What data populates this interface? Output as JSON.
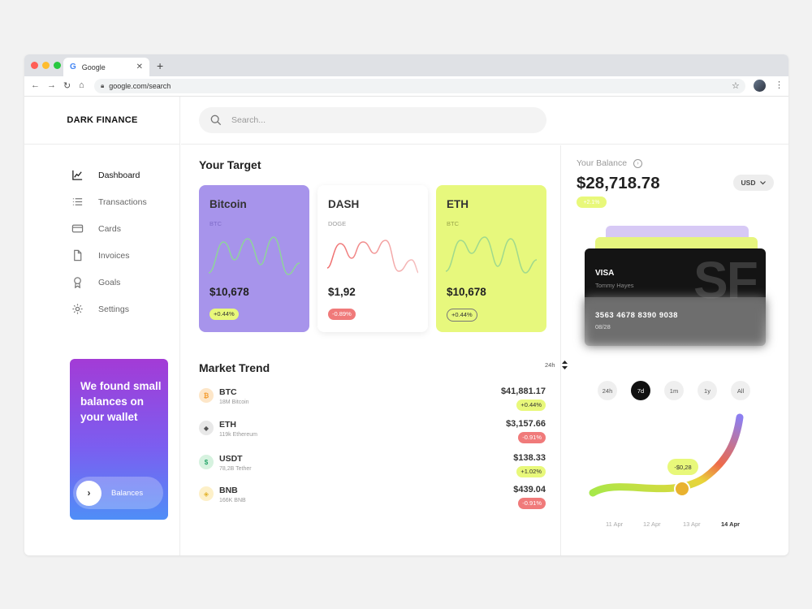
{
  "browser": {
    "tab_title": "Google",
    "tab_icon_letter": "G",
    "url": "google.com/search",
    "dot_colors": [
      "#ff5f57",
      "#febc2e",
      "#28c840"
    ]
  },
  "brand": "DARK FINANCE",
  "search": {
    "placeholder": "Search..."
  },
  "menu": [
    {
      "label": "Dashboard",
      "icon": "chart-line-icon",
      "active": true
    },
    {
      "label": "Transactions",
      "icon": "list-icon",
      "active": false
    },
    {
      "label": "Cards",
      "icon": "card-icon",
      "active": false
    },
    {
      "label": "Invoices",
      "icon": "document-icon",
      "active": false
    },
    {
      "label": "Goals",
      "icon": "award-icon",
      "active": false
    },
    {
      "label": "Settings",
      "icon": "gear-icon",
      "active": false
    }
  ],
  "promo": {
    "text": "We found small balances on your wallet",
    "button": "Balances"
  },
  "target": {
    "title": "Your Target",
    "cards": [
      {
        "name": "Bitcoin",
        "sub": "BTC",
        "price": "$10,678",
        "change": "+0.44%",
        "bg": "#a794eb",
        "line": "#8fd49a"
      },
      {
        "name": "DASH",
        "sub": "DOGE",
        "price": "$1,92",
        "change": "-0.89%",
        "bg": "#ffffff",
        "line": "#ef6d6d"
      },
      {
        "name": "ETH",
        "sub": "BTC",
        "price": "$10,678",
        "change": "+0.44%",
        "bg": "#e7f87d",
        "line": "#9fd98d"
      }
    ]
  },
  "market": {
    "title": "Market Trend",
    "filter": "24h",
    "rows": [
      {
        "symbol": "BTC",
        "volume": "18M Bitcoin",
        "price": "$41,881.17",
        "change": "+0.44%",
        "up": true,
        "coin": "₿",
        "coin_bg": "#fde6c8",
        "coin_fg": "#f39b2e"
      },
      {
        "symbol": "ETH",
        "volume": "119k Ethereum",
        "price": "$3,157.66",
        "change": "-0.91%",
        "up": false,
        "coin": "◆",
        "coin_bg": "#e8e8e8",
        "coin_fg": "#555555"
      },
      {
        "symbol": "USDT",
        "volume": "78,2B Tether",
        "price": "$138.33",
        "change": "+1.02%",
        "up": true,
        "coin": "$",
        "coin_bg": "#d6f2df",
        "coin_fg": "#28a66b"
      },
      {
        "symbol": "BNB",
        "volume": "166K BNB",
        "price": "$439.04",
        "change": "-0.91%",
        "up": false,
        "coin": "◈",
        "coin_bg": "#fdf0c8",
        "coin_fg": "#e2b22a"
      }
    ]
  },
  "balance": {
    "label": "Your Balance",
    "amount": "$28,718.78",
    "change": "+2.1%",
    "currency": "USD"
  },
  "credit_card": {
    "brand": "VISA",
    "holder": "Tommy Hayes",
    "number": "3563 4678 8390 9038",
    "expiry": "08/28",
    "watermark": "SF"
  },
  "periods": [
    {
      "label": "24h",
      "active": false
    },
    {
      "label": "7d",
      "active": true
    },
    {
      "label": "1m",
      "active": false
    },
    {
      "label": "1y",
      "active": false
    },
    {
      "label": "All",
      "active": false
    }
  ],
  "gauge": {
    "tooltip": "-$0,28",
    "dates": [
      {
        "label": "11 Apr",
        "active": false
      },
      {
        "label": "12 Apr",
        "active": false
      },
      {
        "label": "13 Apr",
        "active": false
      },
      {
        "label": "14 Apr",
        "active": true
      }
    ]
  },
  "colors": {
    "badge_up": "#e8f87a",
    "badge_down": "#f07a7a",
    "accent_purple": "#a794eb",
    "accent_lime": "#e7f87d"
  }
}
